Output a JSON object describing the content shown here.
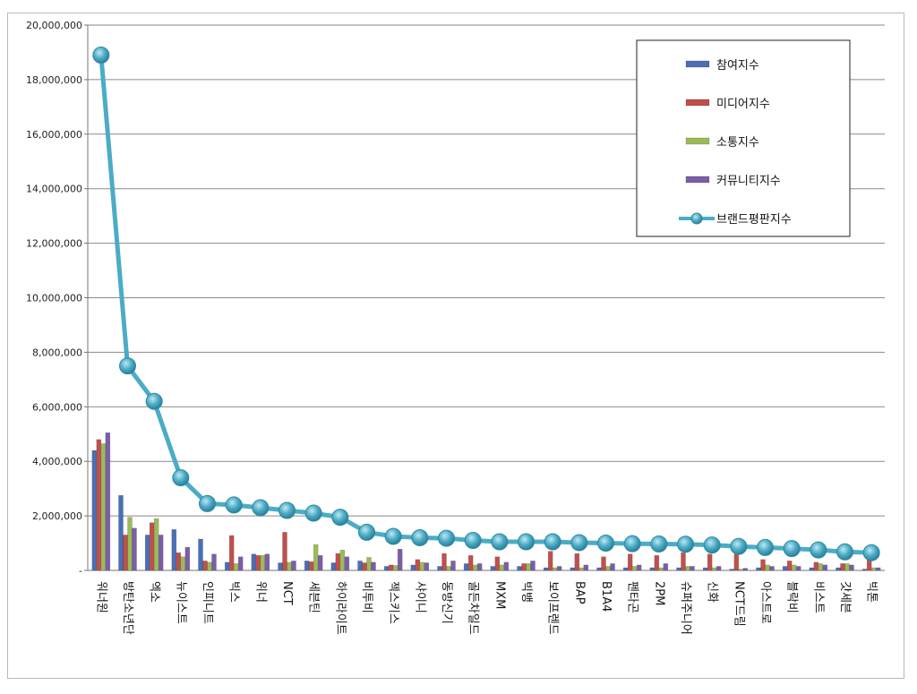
{
  "chart_data": {
    "type": "bar",
    "y_ticks": [
      "-",
      "2,000,000",
      "4,000,000",
      "6,000,000",
      "8,000,000",
      "10,000,000",
      "12,000,000",
      "14,000,000",
      "16,000,000",
      "18,000,000",
      "20,000,000"
    ],
    "ylim": [
      0,
      20000000
    ],
    "grid": true,
    "legend_position": "top-right",
    "categories": [
      "워너원",
      "방탄소년단",
      "엑소",
      "뉴이스트",
      "인피니트",
      "빅스",
      "위너",
      "NCT",
      "세븐틴",
      "하이라이트",
      "비투비",
      "젝스키스",
      "샤이니",
      "동방신기",
      "골든차일드",
      "MXM",
      "빅뱅",
      "보이프렌드",
      "BAP",
      "B1A4",
      "펜타곤",
      "2PM",
      "슈퍼주니어",
      "신화",
      "NCT드림",
      "아스트로",
      "블락비",
      "비스트",
      "갓세븐",
      "빅톤"
    ],
    "series": [
      {
        "name": "참여지수",
        "type": "bar",
        "color": "#4a6fb5",
        "values": [
          4400000,
          2750000,
          1300000,
          1500000,
          1150000,
          300000,
          600000,
          280000,
          350000,
          280000,
          350000,
          150000,
          200000,
          150000,
          250000,
          150000,
          150000,
          100000,
          100000,
          100000,
          100000,
          100000,
          100000,
          100000,
          50000,
          100000,
          150000,
          100000,
          100000,
          50000
        ]
      },
      {
        "name": "미디어지수",
        "type": "bar",
        "color": "#c0504d",
        "values": [
          4800000,
          1300000,
          1750000,
          650000,
          350000,
          1280000,
          550000,
          1400000,
          320000,
          620000,
          280000,
          200000,
          400000,
          620000,
          550000,
          500000,
          250000,
          700000,
          620000,
          500000,
          600000,
          550000,
          650000,
          600000,
          600000,
          400000,
          350000,
          300000,
          250000,
          550000
        ]
      },
      {
        "name": "소통지수",
        "type": "bar",
        "color": "#9bbb59",
        "values": [
          4650000,
          1950000,
          1900000,
          500000,
          300000,
          250000,
          550000,
          300000,
          950000,
          750000,
          480000,
          180000,
          300000,
          150000,
          200000,
          200000,
          250000,
          100000,
          100000,
          150000,
          150000,
          100000,
          150000,
          100000,
          50000,
          200000,
          200000,
          250000,
          250000,
          100000
        ]
      },
      {
        "name": "커뮤니티지수",
        "type": "bar",
        "color": "#7b5ea7",
        "values": [
          5050000,
          1550000,
          1300000,
          850000,
          600000,
          500000,
          600000,
          350000,
          550000,
          500000,
          300000,
          780000,
          280000,
          350000,
          250000,
          300000,
          350000,
          150000,
          200000,
          250000,
          200000,
          250000,
          150000,
          150000,
          80000,
          150000,
          150000,
          200000,
          200000,
          100000
        ]
      },
      {
        "name": "브랜드평판지수",
        "type": "line",
        "color": "#4bacc6",
        "values": [
          18900000,
          7500000,
          6200000,
          3400000,
          2450000,
          2400000,
          2300000,
          2200000,
          2100000,
          1950000,
          1400000,
          1250000,
          1200000,
          1180000,
          1100000,
          1050000,
          1050000,
          1050000,
          1020000,
          1000000,
          980000,
          970000,
          960000,
          930000,
          880000,
          840000,
          800000,
          750000,
          680000,
          650000
        ]
      }
    ]
  }
}
